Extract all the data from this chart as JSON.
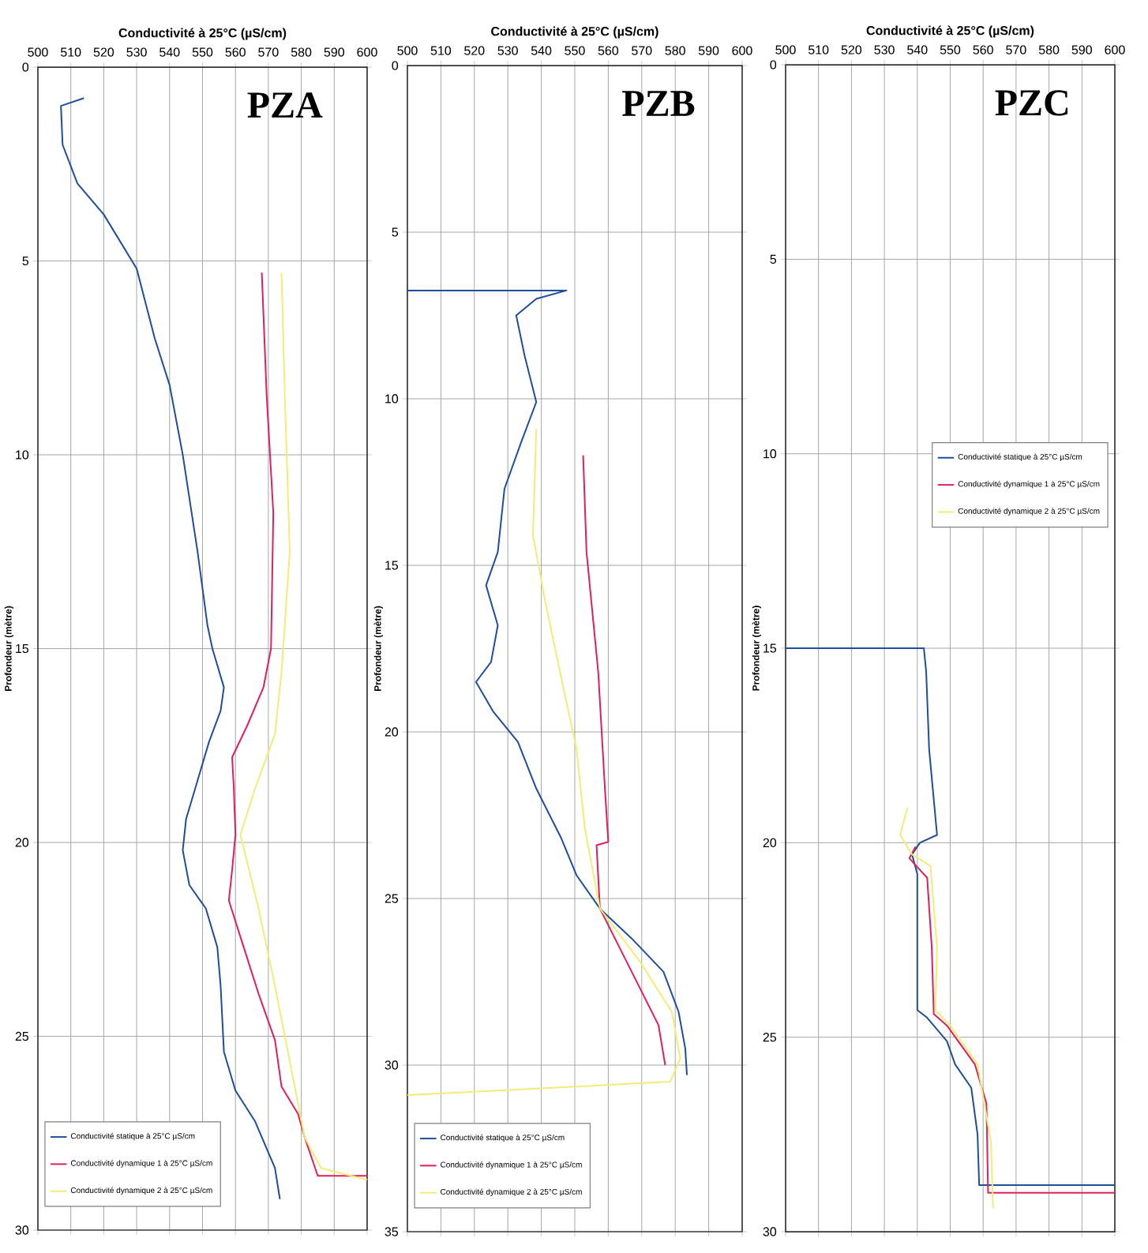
{
  "chart_data": [
    {
      "type": "line",
      "title": "PZA",
      "xlabel": "Conductivité à 25°C (µS/cm)",
      "ylabel": "Profondeur (mètre)",
      "xlim": [
        500,
        600
      ],
      "xticks": [
        500,
        510,
        520,
        530,
        540,
        550,
        560,
        570,
        580,
        590,
        600
      ],
      "ylim": [
        30,
        0
      ],
      "yticks": [
        0,
        5,
        10,
        15,
        20,
        25,
        30
      ],
      "grid": true,
      "legend": "bottom left",
      "marker": "none",
      "line_style": "solid",
      "series": [
        {
          "name": "Conductivité statique à 25°C µS/cm",
          "color": "#1f4e9c",
          "x": [
            514,
            507,
            507.5,
            512,
            520,
            530,
            535.5,
            540,
            544,
            548.5,
            551.5,
            553,
            556.5,
            555.5,
            552,
            548.5,
            545,
            544,
            546,
            551,
            554.5,
            555.5,
            556.5,
            560,
            566,
            572,
            573.5
          ],
          "values": [
            0.8,
            1.0,
            2.0,
            3.0,
            3.8,
            5.2,
            7.0,
            8.2,
            10.0,
            12.5,
            14.4,
            15.0,
            16.0,
            16.6,
            17.4,
            18.4,
            19.4,
            20.2,
            21.1,
            21.7,
            22.7,
            23.7,
            25.4,
            26.4,
            27.2,
            28.4,
            29.2
          ]
        },
        {
          "name": "Conductivité dynamique 1 à 25°C µS/cm",
          "color": "#e0205a",
          "x": [
            568,
            569.5,
            571.5,
            570.8,
            568.5,
            563.5,
            559,
            559.5,
            560,
            559,
            558,
            562.5,
            567,
            572,
            574,
            579,
            581,
            585,
            600
          ],
          "values": [
            5.3,
            8.5,
            11.5,
            15.0,
            16.0,
            17.0,
            17.8,
            18.6,
            19.8,
            20.7,
            21.5,
            22.7,
            23.9,
            25.1,
            26.3,
            27.0,
            27.6,
            28.6,
            28.6
          ]
        },
        {
          "name": "Conductivité dynamique 2 à 25°C µS/cm",
          "color": "#f2ec78",
          "x": [
            574,
            575,
            576.5,
            574,
            572,
            566,
            561.5,
            567,
            572,
            578,
            581,
            586,
            600
          ],
          "values": [
            5.3,
            8.5,
            12.5,
            15.6,
            17.2,
            18.6,
            19.8,
            21.7,
            23.7,
            26.3,
            27.6,
            28.4,
            28.7
          ]
        }
      ]
    },
    {
      "type": "line",
      "title": "PZB",
      "xlabel": "Conductivité à 25°C (µS/cm)",
      "ylabel": "Profondeur (mètre)",
      "xlim": [
        500,
        600
      ],
      "xticks": [
        500,
        510,
        520,
        530,
        540,
        550,
        560,
        570,
        580,
        590,
        600
      ],
      "ylim": [
        35,
        0
      ],
      "yticks": [
        0,
        5,
        10,
        15,
        20,
        25,
        30,
        35
      ],
      "grid": true,
      "legend": "bottom left",
      "marker": "none",
      "line_style": "solid",
      "series": [
        {
          "name": "Conductivité statique à 25°C µS/cm",
          "color": "#1f4e9c",
          "x": [
            500,
            547.5,
            538.5,
            532.5,
            535,
            538.5,
            534,
            529,
            527,
            523.5,
            527,
            525,
            520.5,
            525.7,
            533,
            538.5,
            546,
            550.5,
            557.5,
            567,
            576.5,
            581,
            583,
            583.5
          ],
          "values": [
            6.75,
            6.75,
            7.0,
            7.5,
            8.7,
            10.1,
            11.3,
            12.7,
            14.6,
            15.6,
            16.8,
            17.9,
            18.5,
            19.4,
            20.3,
            21.7,
            23.2,
            24.3,
            25.3,
            26.2,
            27.2,
            28.4,
            29.5,
            30.3
          ]
        },
        {
          "name": "Conductivité dynamique 1 à 25°C µS/cm",
          "color": "#e0205a",
          "x": [
            552.5,
            553.5,
            557,
            559,
            560,
            556.5,
            557.5,
            563.5,
            570.5,
            575,
            577
          ],
          "values": [
            11.7,
            14.6,
            18.2,
            21.7,
            23.3,
            23.4,
            25.3,
            26.5,
            27.9,
            28.8,
            30.0
          ]
        },
        {
          "name": "Conductivité dynamique 2 à 25°C µS/cm",
          "color": "#f2ec78",
          "x": [
            538.5,
            537.5,
            541,
            546,
            550.5,
            553,
            557.5,
            569.5,
            579,
            581.5,
            578.5,
            500
          ],
          "values": [
            10.9,
            14.1,
            16.0,
            18.4,
            20.5,
            22.9,
            25.3,
            26.9,
            28.4,
            29.8,
            30.5,
            30.9
          ]
        }
      ]
    },
    {
      "type": "line",
      "title": "PZC",
      "xlabel": "Conductivité à 25°C (µS/cm)",
      "ylabel": "Profondeur (mètre)",
      "xlim": [
        500,
        600
      ],
      "xticks": [
        500,
        510,
        520,
        530,
        540,
        550,
        560,
        570,
        580,
        590,
        600
      ],
      "ylim": [
        30,
        0
      ],
      "yticks": [
        0,
        5,
        10,
        15,
        20,
        25,
        30
      ],
      "grid": true,
      "legend": "right",
      "marker": "none",
      "line_style": "solid",
      "series": [
        {
          "name": "Conductivité statique à 25°C µS/cm",
          "color": "#1f4e9c",
          "x": [
            500,
            542,
            542.7,
            543.6,
            546,
            540.8,
            538.4,
            540,
            540,
            543,
            549,
            551.5,
            556.4,
            558.3,
            558.8,
            600
          ],
          "values": [
            15.0,
            15.0,
            15.6,
            17.6,
            19.8,
            20.0,
            20.3,
            20.8,
            24.3,
            24.5,
            25.1,
            25.7,
            26.3,
            27.5,
            28.8,
            28.8
          ]
        },
        {
          "name": "Conductivité dynamique 1 à 25°C µS/cm",
          "color": "#e0205a",
          "x": [
            539.5,
            537.6,
            540.8,
            543,
            544.4,
            545,
            549,
            557.5,
            561,
            561.5,
            600
          ],
          "values": [
            20.1,
            20.4,
            20.7,
            20.9,
            22.7,
            24.4,
            24.7,
            25.7,
            26.7,
            29.0,
            29.0
          ]
        },
        {
          "name": "Conductivité dynamique 2 à 25°C µS/cm",
          "color": "#f2ec78",
          "x": [
            537,
            534.8,
            538.4,
            544,
            546,
            545.5,
            550,
            558.3,
            562.4,
            563
          ],
          "values": [
            19.1,
            19.8,
            20.3,
            20.6,
            22.7,
            24.3,
            24.7,
            25.7,
            27.7,
            29.4
          ]
        }
      ]
    }
  ]
}
